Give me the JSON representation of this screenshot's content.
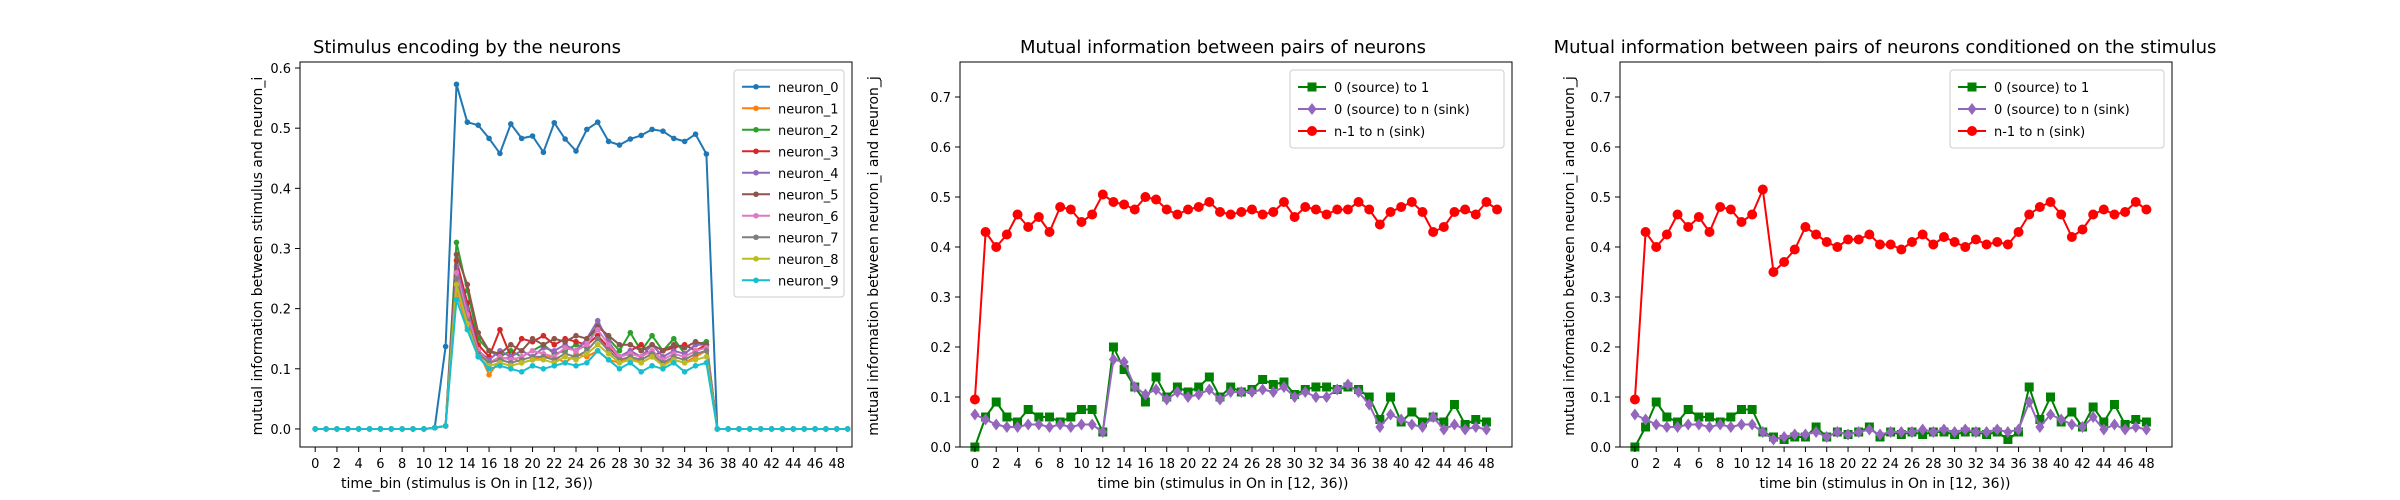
{
  "chart_data": [
    {
      "type": "line",
      "title": "Stimulus encoding by the neurons",
      "xlabel": "time_bin (stimulus is On in [12, 36))",
      "ylabel": "mutual information between stimulus and neuron_i",
      "xlim": [
        -1.4,
        49.4
      ],
      "ylim": [
        -0.03,
        0.61
      ],
      "xticks": [
        0,
        2,
        4,
        6,
        8,
        10,
        12,
        14,
        16,
        18,
        20,
        22,
        24,
        26,
        28,
        30,
        32,
        34,
        36,
        38,
        40,
        42,
        44,
        46,
        48
      ],
      "yticks": [
        0.0,
        0.1,
        0.2,
        0.3,
        0.4,
        0.5,
        0.6
      ],
      "ytick_decimals": 1,
      "legend_position": "top-right",
      "series": [
        {
          "name": "neuron_0",
          "color": "#1f77b4",
          "marker": "point",
          "values": [
            0,
            0,
            0,
            0,
            0,
            0,
            0,
            0,
            0,
            0,
            0,
            0.002,
            0.137,
            0.573,
            0.51,
            0.505,
            0.483,
            0.458,
            0.507,
            0.483,
            0.487,
            0.46,
            0.509,
            0.482,
            0.462,
            0.498,
            0.51,
            0.478,
            0.472,
            0.482,
            0.488,
            0.498,
            0.495,
            0.483,
            0.478,
            0.49,
            0.457,
            0,
            0,
            0,
            0,
            0,
            0,
            0,
            0,
            0,
            0,
            0,
            0,
            0
          ]
        },
        {
          "name": "neuron_1",
          "color": "#ff7f0e",
          "marker": "point",
          "values": [
            0,
            0,
            0,
            0,
            0,
            0,
            0,
            0,
            0,
            0,
            0,
            0.002,
            0.005,
            0.23,
            0.17,
            0.13,
            0.09,
            0.115,
            0.12,
            0.11,
            0.115,
            0.12,
            0.12,
            0.11,
            0.125,
            0.12,
            0.13,
            0.115,
            0.11,
            0.12,
            0.11,
            0.12,
            0.11,
            0.115,
            0.11,
            0.12,
            0.13,
            0,
            0,
            0,
            0,
            0,
            0,
            0,
            0,
            0,
            0,
            0,
            0,
            0
          ]
        },
        {
          "name": "neuron_2",
          "color": "#2ca02c",
          "marker": "point",
          "values": [
            0,
            0,
            0,
            0,
            0,
            0,
            0,
            0,
            0,
            0,
            0,
            0.002,
            0.005,
            0.31,
            0.23,
            0.15,
            0.13,
            0.12,
            0.13,
            0.12,
            0.13,
            0.14,
            0.125,
            0.13,
            0.14,
            0.135,
            0.175,
            0.15,
            0.13,
            0.16,
            0.13,
            0.155,
            0.13,
            0.15,
            0.125,
            0.14,
            0.145,
            0,
            0,
            0,
            0,
            0,
            0,
            0,
            0,
            0,
            0,
            0,
            0,
            0
          ]
        },
        {
          "name": "neuron_3",
          "color": "#d62728",
          "marker": "point",
          "values": [
            0,
            0,
            0,
            0,
            0,
            0,
            0,
            0,
            0,
            0,
            0,
            0.002,
            0.005,
            0.28,
            0.21,
            0.14,
            0.12,
            0.165,
            0.12,
            0.15,
            0.145,
            0.155,
            0.14,
            0.15,
            0.145,
            0.14,
            0.155,
            0.135,
            0.12,
            0.13,
            0.14,
            0.12,
            0.13,
            0.135,
            0.14,
            0.13,
            0.14,
            0,
            0,
            0,
            0,
            0,
            0,
            0,
            0,
            0,
            0,
            0,
            0,
            0
          ]
        },
        {
          "name": "neuron_4",
          "color": "#9467bd",
          "marker": "point",
          "values": [
            0,
            0,
            0,
            0,
            0,
            0,
            0,
            0,
            0,
            0,
            0,
            0.002,
            0.005,
            0.27,
            0.2,
            0.13,
            0.115,
            0.13,
            0.12,
            0.13,
            0.12,
            0.135,
            0.13,
            0.14,
            0.13,
            0.15,
            0.18,
            0.145,
            0.12,
            0.13,
            0.12,
            0.14,
            0.12,
            0.13,
            0.125,
            0.14,
            0.14,
            0,
            0,
            0,
            0,
            0,
            0,
            0,
            0,
            0,
            0,
            0,
            0,
            0
          ]
        },
        {
          "name": "neuron_5",
          "color": "#8c564b",
          "marker": "point",
          "values": [
            0,
            0,
            0,
            0,
            0,
            0,
            0,
            0,
            0,
            0,
            0,
            0.002,
            0.005,
            0.29,
            0.24,
            0.16,
            0.13,
            0.125,
            0.14,
            0.13,
            0.15,
            0.14,
            0.15,
            0.145,
            0.155,
            0.15,
            0.17,
            0.155,
            0.14,
            0.14,
            0.13,
            0.14,
            0.13,
            0.14,
            0.135,
            0.145,
            0.14,
            0,
            0,
            0,
            0,
            0,
            0,
            0,
            0,
            0,
            0,
            0,
            0,
            0
          ]
        },
        {
          "name": "neuron_6",
          "color": "#e377c2",
          "marker": "point",
          "values": [
            0,
            0,
            0,
            0,
            0,
            0,
            0,
            0,
            0,
            0,
            0,
            0.002,
            0.005,
            0.26,
            0.19,
            0.13,
            0.11,
            0.12,
            0.115,
            0.12,
            0.13,
            0.125,
            0.12,
            0.135,
            0.13,
            0.14,
            0.165,
            0.14,
            0.12,
            0.125,
            0.12,
            0.13,
            0.115,
            0.125,
            0.12,
            0.13,
            0.135,
            0,
            0,
            0,
            0,
            0,
            0,
            0,
            0,
            0,
            0,
            0,
            0,
            0
          ]
        },
        {
          "name": "neuron_7",
          "color": "#7f7f7f",
          "marker": "point",
          "values": [
            0,
            0,
            0,
            0,
            0,
            0,
            0,
            0,
            0,
            0,
            0,
            0.002,
            0.005,
            0.25,
            0.18,
            0.125,
            0.11,
            0.115,
            0.11,
            0.115,
            0.12,
            0.12,
            0.115,
            0.125,
            0.12,
            0.13,
            0.15,
            0.13,
            0.115,
            0.12,
            0.115,
            0.125,
            0.11,
            0.12,
            0.115,
            0.125,
            0.13,
            0,
            0,
            0,
            0,
            0,
            0,
            0,
            0,
            0,
            0,
            0,
            0,
            0
          ]
        },
        {
          "name": "neuron_8",
          "color": "#bcbd22",
          "marker": "point",
          "values": [
            0,
            0,
            0,
            0,
            0,
            0,
            0,
            0,
            0,
            0,
            0,
            0.002,
            0.005,
            0.24,
            0.175,
            0.12,
            0.105,
            0.11,
            0.105,
            0.11,
            0.115,
            0.115,
            0.11,
            0.12,
            0.115,
            0.125,
            0.14,
            0.125,
            0.11,
            0.115,
            0.11,
            0.12,
            0.105,
            0.115,
            0.11,
            0.115,
            0.12,
            0,
            0,
            0,
            0,
            0,
            0,
            0,
            0,
            0,
            0,
            0,
            0,
            0
          ]
        },
        {
          "name": "neuron_9",
          "color": "#17becf",
          "marker": "point",
          "values": [
            0,
            0,
            0,
            0,
            0,
            0,
            0,
            0,
            0,
            0,
            0,
            0.002,
            0.005,
            0.215,
            0.165,
            0.12,
            0.1,
            0.105,
            0.1,
            0.095,
            0.105,
            0.1,
            0.105,
            0.11,
            0.105,
            0.11,
            0.13,
            0.115,
            0.1,
            0.11,
            0.095,
            0.105,
            0.1,
            0.11,
            0.095,
            0.105,
            0.11,
            0,
            0,
            0,
            0,
            0,
            0,
            0,
            0,
            0,
            0,
            0,
            0,
            0
          ]
        }
      ]
    },
    {
      "type": "line",
      "title": "Mutual information between pairs of neurons",
      "xlabel": "time bin (stimulus in On in [12, 36))",
      "ylabel": "mutual information between neuron_i and neuron_j",
      "xlim": [
        -1.4,
        50.4
      ],
      "ylim": [
        0,
        0.77
      ],
      "xticks": [
        0,
        2,
        4,
        6,
        8,
        10,
        12,
        14,
        16,
        18,
        20,
        22,
        24,
        26,
        28,
        30,
        32,
        34,
        36,
        38,
        40,
        42,
        44,
        46,
        48
      ],
      "yticks": [
        0.0,
        0.1,
        0.2,
        0.3,
        0.4,
        0.5,
        0.6,
        0.7
      ],
      "ytick_decimals": 1,
      "legend_position": "top-right",
      "series": [
        {
          "name": "0 (source) to 1",
          "color": "#008000",
          "marker": "square",
          "values": [
            0.0,
            0.06,
            0.09,
            0.06,
            0.05,
            0.075,
            0.06,
            0.06,
            0.05,
            0.06,
            0.075,
            0.075,
            0.03,
            0.2,
            0.155,
            0.12,
            0.09,
            0.14,
            0.1,
            0.12,
            0.11,
            0.12,
            0.14,
            0.1,
            0.12,
            0.11,
            0.115,
            0.135,
            0.125,
            0.13,
            0.105,
            0.115,
            0.12,
            0.12,
            0.115,
            0.12,
            0.115,
            0.1,
            0.055,
            0.1,
            0.05,
            0.07,
            0.05,
            0.06,
            0.05,
            0.085,
            0.045,
            0.055,
            0.05
          ]
        },
        {
          "name": "0 (source) to n (sink)",
          "color": "#9467bd",
          "marker": "diamond",
          "values": [
            0.065,
            0.055,
            0.045,
            0.04,
            0.04,
            0.045,
            0.045,
            0.04,
            0.045,
            0.04,
            0.045,
            0.045,
            0.03,
            0.175,
            0.17,
            0.12,
            0.105,
            0.115,
            0.095,
            0.11,
            0.1,
            0.105,
            0.115,
            0.095,
            0.11,
            0.11,
            0.11,
            0.115,
            0.11,
            0.12,
            0.1,
            0.11,
            0.1,
            0.1,
            0.115,
            0.125,
            0.11,
            0.085,
            0.04,
            0.065,
            0.055,
            0.045,
            0.04,
            0.06,
            0.035,
            0.045,
            0.035,
            0.04,
            0.035
          ]
        },
        {
          "name": "n-1 to n (sink)",
          "color": "#ff0000",
          "marker": "circle",
          "values": [
            0.095,
            0.43,
            0.4,
            0.425,
            0.465,
            0.44,
            0.46,
            0.43,
            0.48,
            0.475,
            0.45,
            0.465,
            0.505,
            0.49,
            0.485,
            0.475,
            0.5,
            0.495,
            0.475,
            0.465,
            0.475,
            0.48,
            0.49,
            0.47,
            0.465,
            0.47,
            0.475,
            0.465,
            0.47,
            0.49,
            0.46,
            0.48,
            0.475,
            0.465,
            0.475,
            0.475,
            0.49,
            0.475,
            0.445,
            0.47,
            0.48,
            0.49,
            0.47,
            0.43,
            0.44,
            0.47,
            0.475,
            0.465,
            0.49,
            0.475
          ]
        }
      ]
    },
    {
      "type": "line",
      "title": "Mutual information between pairs of neurons conditioned on the stimulus",
      "xlabel": "time bin (stimulus in On in [12, 36))",
      "ylabel": "mutual information between neuron_i and neuron_j",
      "xlim": [
        -1.4,
        50.4
      ],
      "ylim": [
        0,
        0.77
      ],
      "xticks": [
        0,
        2,
        4,
        6,
        8,
        10,
        12,
        14,
        16,
        18,
        20,
        22,
        24,
        26,
        28,
        30,
        32,
        34,
        36,
        38,
        40,
        42,
        44,
        46,
        48
      ],
      "yticks": [
        0.0,
        0.1,
        0.2,
        0.3,
        0.4,
        0.5,
        0.6,
        0.7
      ],
      "ytick_decimals": 1,
      "legend_position": "top-right",
      "series": [
        {
          "name": "0 (source) to 1",
          "color": "#008000",
          "marker": "square",
          "values": [
            0.0,
            0.04,
            0.09,
            0.06,
            0.05,
            0.075,
            0.06,
            0.06,
            0.05,
            0.06,
            0.075,
            0.075,
            0.03,
            0.02,
            0.015,
            0.02,
            0.02,
            0.04,
            0.02,
            0.03,
            0.025,
            0.03,
            0.04,
            0.02,
            0.03,
            0.025,
            0.03,
            0.025,
            0.03,
            0.03,
            0.025,
            0.03,
            0.03,
            0.025,
            0.03,
            0.015,
            0.03,
            0.12,
            0.055,
            0.1,
            0.05,
            0.07,
            0.04,
            0.08,
            0.05,
            0.085,
            0.045,
            0.055,
            0.05
          ]
        },
        {
          "name": "0 (source) to n (sink)",
          "color": "#9467bd",
          "marker": "diamond",
          "values": [
            0.065,
            0.055,
            0.045,
            0.04,
            0.04,
            0.045,
            0.045,
            0.04,
            0.045,
            0.04,
            0.045,
            0.045,
            0.03,
            0.015,
            0.02,
            0.025,
            0.025,
            0.03,
            0.02,
            0.03,
            0.025,
            0.03,
            0.035,
            0.025,
            0.03,
            0.03,
            0.03,
            0.035,
            0.03,
            0.035,
            0.03,
            0.035,
            0.03,
            0.03,
            0.035,
            0.03,
            0.035,
            0.09,
            0.04,
            0.065,
            0.055,
            0.045,
            0.04,
            0.06,
            0.035,
            0.045,
            0.035,
            0.04,
            0.035
          ]
        },
        {
          "name": "n-1 to n (sink)",
          "color": "#ff0000",
          "marker": "circle",
          "values": [
            0.095,
            0.43,
            0.4,
            0.425,
            0.465,
            0.44,
            0.46,
            0.43,
            0.48,
            0.475,
            0.45,
            0.465,
            0.515,
            0.35,
            0.37,
            0.395,
            0.44,
            0.425,
            0.41,
            0.4,
            0.415,
            0.415,
            0.425,
            0.405,
            0.405,
            0.395,
            0.41,
            0.425,
            0.405,
            0.42,
            0.41,
            0.4,
            0.415,
            0.405,
            0.41,
            0.405,
            0.43,
            0.465,
            0.48,
            0.49,
            0.465,
            0.42,
            0.435,
            0.465,
            0.475,
            0.465,
            0.47,
            0.49,
            0.475
          ]
        }
      ]
    }
  ]
}
